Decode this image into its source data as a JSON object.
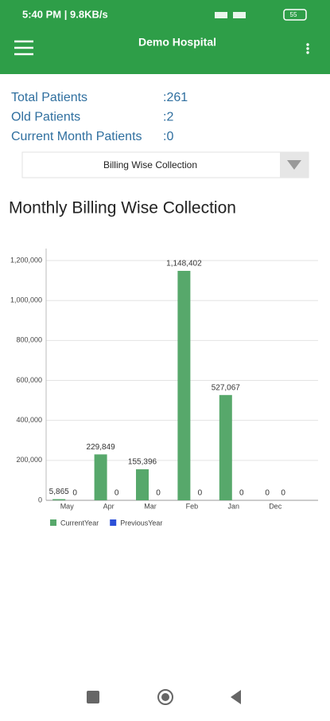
{
  "status_bar": {
    "time": "5:40 PM | 9.8KB/s",
    "battery": "55"
  },
  "header": {
    "title": "Demo Hospital"
  },
  "stats": [
    {
      "label": "Total Patients",
      "value": ":261"
    },
    {
      "label": "Old Patients",
      "value": ":2"
    },
    {
      "label": "Current Month Patients",
      "value": ":0"
    }
  ],
  "dropdown": {
    "selected": "Billing Wise Collection"
  },
  "chart_data": {
    "type": "bar",
    "title": "Monthly Billing Wise Collection",
    "categories": [
      "May",
      "Apr",
      "Mar",
      "Feb",
      "Jan",
      "Dec"
    ],
    "series": [
      {
        "name": "CurrentYear",
        "color": "#57a86b",
        "values": [
          5865,
          229849,
          155396,
          1148402,
          527067,
          0
        ],
        "value_labels": [
          "5,865",
          "229,849",
          "155,396",
          "1,148,402",
          "527,067",
          "0"
        ]
      },
      {
        "name": "PreviousYear",
        "color": "#2b50d8",
        "values": [
          0,
          0,
          0,
          0,
          0,
          0
        ]
      }
    ],
    "ylim": [
      0,
      1260000
    ],
    "yticks": [
      0,
      {
        "value": 200000,
        "label": "200,000"
      },
      {
        "value": 400000,
        "label": "400,000"
      },
      {
        "value": 600000,
        "label": "600,000"
      },
      {
        "value": 800000,
        "label": "800,000"
      },
      {
        "value": 1000000,
        "label": "1,000,000"
      },
      {
        "value": 1200000,
        "label": "1,200,000"
      }
    ],
    "grid": true
  }
}
